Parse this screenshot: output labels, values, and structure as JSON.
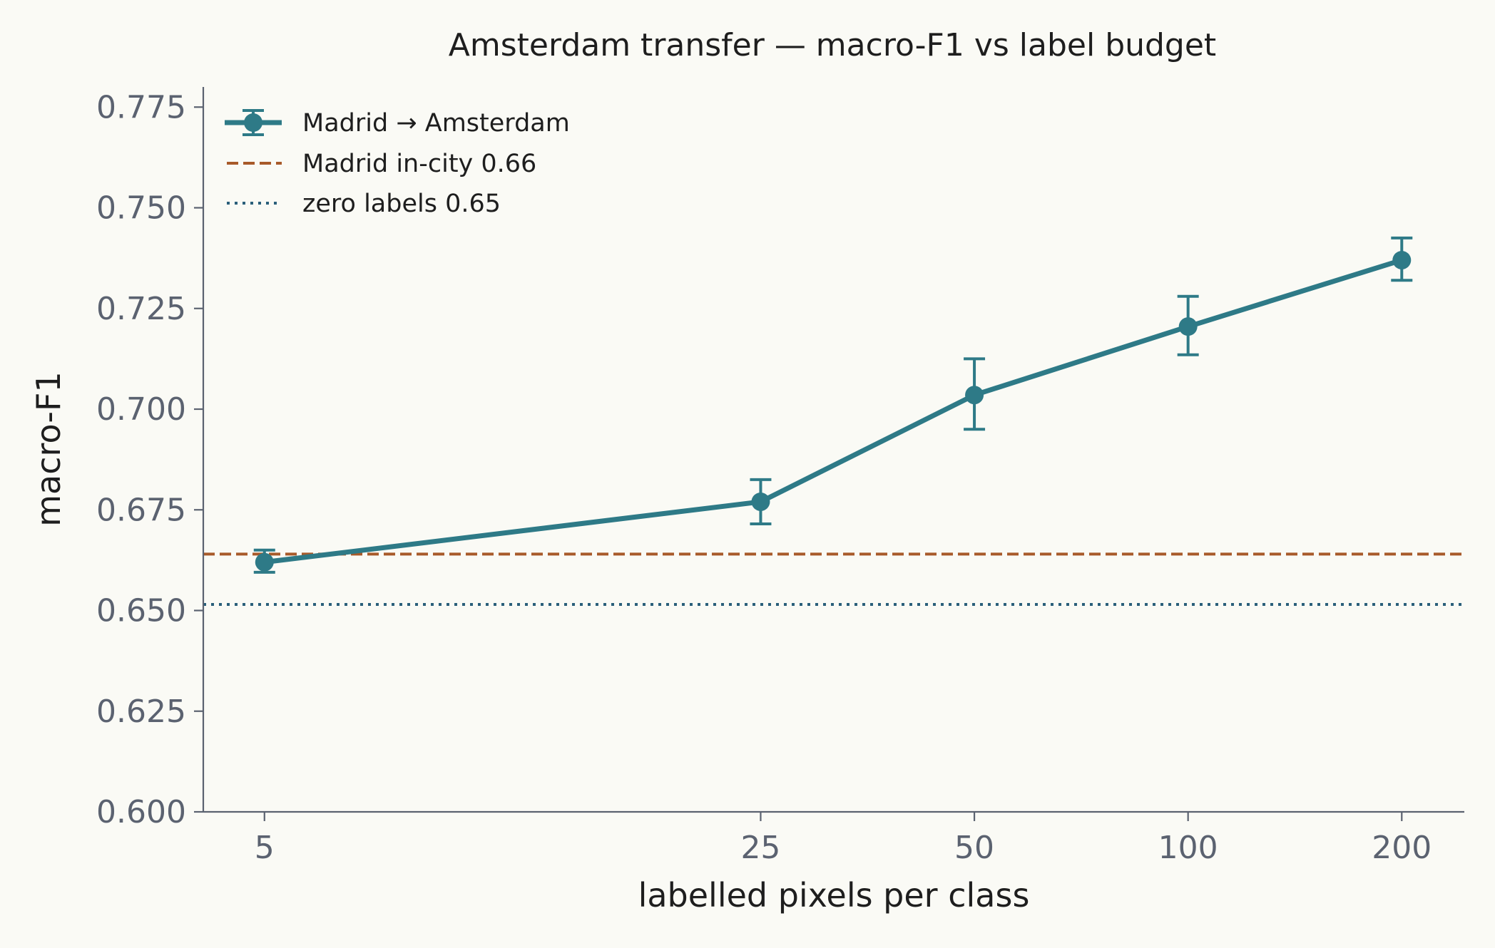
{
  "chart_data": {
    "type": "line",
    "title": "Amsterdam transfer — macro-F1 vs label budget",
    "xlabel": "labelled pixels per class",
    "ylabel": "macro-F1",
    "x_scale": "log",
    "x_ticks": [
      5,
      25,
      50,
      100,
      200
    ],
    "x_tick_labels": [
      "5",
      "25",
      "50",
      "100",
      "200"
    ],
    "xlim": [
      4.1,
      245
    ],
    "ylim": [
      0.6,
      0.78
    ],
    "y_ticks": [
      0.6,
      0.625,
      0.65,
      0.675,
      0.7,
      0.725,
      0.75,
      0.775
    ],
    "y_tick_labels": [
      "0.600",
      "0.625",
      "0.650",
      "0.675",
      "0.700",
      "0.725",
      "0.750",
      "0.775"
    ],
    "grid": false,
    "legend_position": "top-left",
    "series": [
      {
        "name": "Madrid → Amsterdam",
        "style": "line-markers-errorbars",
        "color": "#2e7a87",
        "x": [
          5,
          25,
          50,
          100,
          200
        ],
        "y": [
          0.662,
          0.677,
          0.7035,
          0.7205,
          0.737
        ],
        "err_low": [
          0.6595,
          0.6715,
          0.695,
          0.7135,
          0.732
        ],
        "err_high": [
          0.665,
          0.6825,
          0.7125,
          0.728,
          0.7425
        ]
      }
    ],
    "reference_lines": [
      {
        "name": "Madrid in-city 0.66",
        "y": 0.664,
        "style": "dashed",
        "color": "#a85a2a"
      },
      {
        "name": "zero labels 0.65",
        "y": 0.6515,
        "style": "dotted",
        "color": "#2a5f7a"
      }
    ]
  }
}
